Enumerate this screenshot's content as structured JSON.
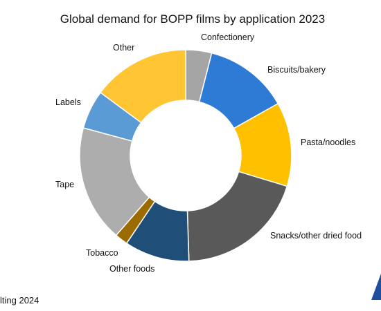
{
  "chart_data": {
    "type": "pie",
    "donut": true,
    "title": "Global demand for BOPP films by application 2023",
    "slices": [
      {
        "label": "Confectionery",
        "value": 4,
        "color": "#A5A5A5"
      },
      {
        "label": "Biscuits/bakery",
        "value": 13,
        "color": "#2E7BD6"
      },
      {
        "label": "Pasta/noodles",
        "value": 13,
        "color": "#FFC000"
      },
      {
        "label": "Snacks/other dried food",
        "value": 20,
        "color": "#595959"
      },
      {
        "label": "Other foods",
        "value": 10,
        "color": "#1F4E79"
      },
      {
        "label": "Tobacco",
        "value": 2,
        "color": "#9C6B00"
      },
      {
        "label": "Tape",
        "value": 18,
        "color": "#ADADAD"
      },
      {
        "label": "Labels",
        "value": 6,
        "color": "#5B9BD5"
      },
      {
        "label": "Other",
        "value": 15,
        "color": "#FFC533"
      }
    ],
    "start": "top",
    "direction": "clockwise",
    "legend": "none"
  },
  "footer": {
    "source_text": "lting 2024"
  },
  "logo": {
    "color": "#1F4E9E"
  }
}
